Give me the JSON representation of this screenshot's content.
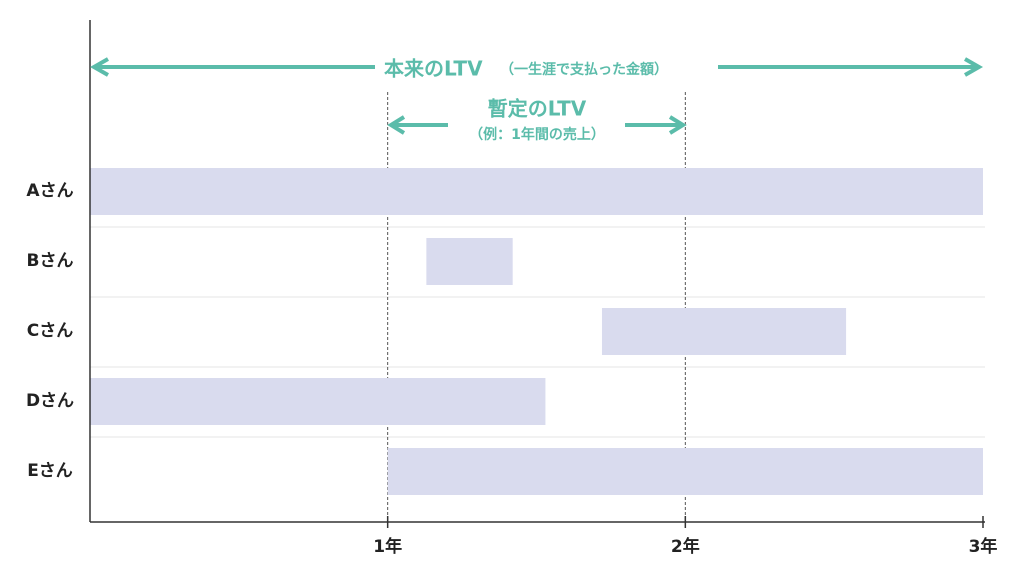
{
  "chart_data": {
    "type": "bar",
    "orientation": "horizontal-range",
    "categories": [
      "Aさん",
      "Bさん",
      "Cさん",
      "Dさん",
      "Eさん"
    ],
    "ranges": [
      [
        0,
        3
      ],
      [
        1.13,
        1.42
      ],
      [
        1.72,
        2.54
      ],
      [
        0,
        1.53
      ],
      [
        1,
        3
      ]
    ],
    "x_ticks": [
      "1年",
      "2年",
      "3年"
    ],
    "xlim": [
      0,
      3
    ],
    "bar_color": "#d9dbee",
    "accent_color": "#5bbcaa",
    "annotations": {
      "full_ltv_label": "本来のLTV",
      "full_ltv_note": "（一生涯で支払った金額）",
      "provisional_ltv_label": "暫定のLTV",
      "provisional_ltv_note": "（例：1年間の売上）"
    }
  }
}
